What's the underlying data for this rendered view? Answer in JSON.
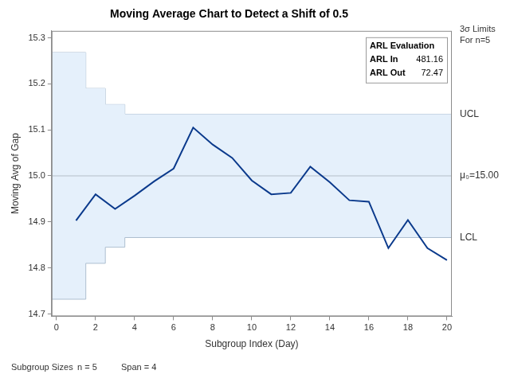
{
  "chart_data": {
    "type": "line",
    "title": "Moving Average Chart to Detect a Shift of 0.5",
    "x_label": "Subgroup Index (Day)",
    "y_label": "Moving Avg of Gap",
    "x": [
      1,
      2,
      3,
      4,
      5,
      6,
      7,
      8,
      9,
      10,
      11,
      12,
      13,
      14,
      15,
      16,
      17,
      18,
      19,
      20
    ],
    "values": [
      14.903,
      14.96,
      14.928,
      14.957,
      14.988,
      15.016,
      15.105,
      15.068,
      15.039,
      14.99,
      14.96,
      14.963,
      15.02,
      14.986,
      14.947,
      14.944,
      14.843,
      14.904,
      14.843,
      14.817
    ],
    "color": "#0b3a8c",
    "xlim": [
      -0.25,
      20.25
    ],
    "xticks": [
      0,
      2,
      4,
      6,
      8,
      10,
      12,
      14,
      16,
      18,
      20
    ],
    "ylim": [
      14.695,
      15.315
    ],
    "yticks": [
      14.7,
      14.8,
      14.9,
      {
        "value": 15,
        "label": "15.0"
      },
      15.1,
      15.2,
      15.3
    ],
    "grid": false,
    "center": 15,
    "limits": {
      "x": [
        -0.25,
        1.5,
        2.5,
        3.5,
        20.25
      ],
      "ucl": [
        15.268,
        15.19,
        15.155,
        15.134,
        15.134
      ],
      "lcl": [
        14.732,
        14.81,
        14.845,
        14.866,
        14.866
      ],
      "color": "#e5f0fb"
    },
    "limit_labels": {
      "heading": [
        "3σ Limits",
        "For n=5"
      ],
      "ucl": "UCL",
      "lcl": "LCL",
      "center": "μ₀=15.00"
    },
    "arl": {
      "title": "ARL Evaluation",
      "rows": [
        {
          "label": "ARL In",
          "value": 481.16
        },
        {
          "label": "ARL Out",
          "value": 72.47
        }
      ]
    },
    "footer": [
      "Subgroup Sizes",
      "n = 5",
      "Span = 4"
    ]
  }
}
